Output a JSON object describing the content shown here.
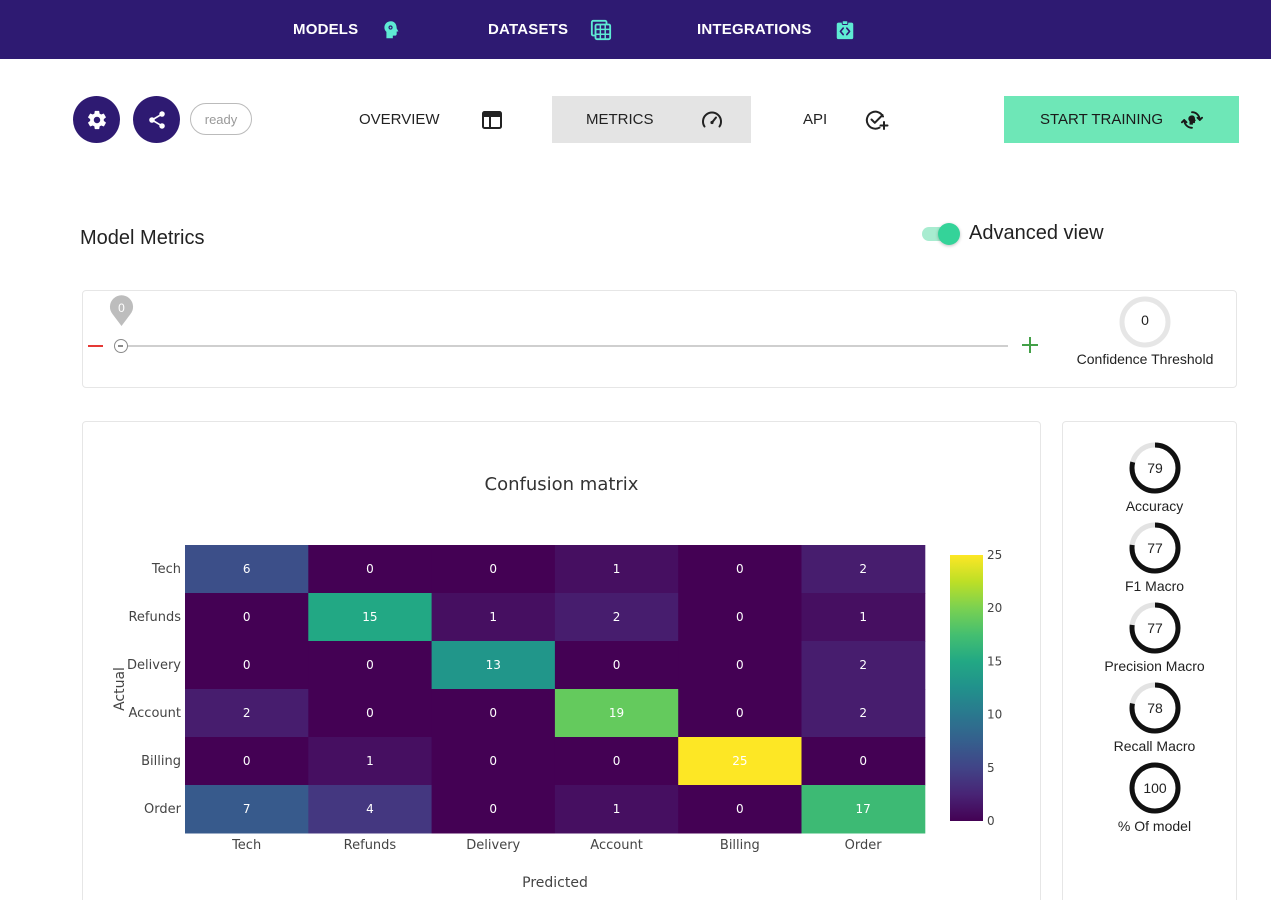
{
  "nav": {
    "models": "MODELS",
    "datasets": "DATASETS",
    "integrations": "INTEGRATIONS"
  },
  "toolbar": {
    "status": "ready",
    "tabs": {
      "overview": "OVERVIEW",
      "metrics": "METRICS",
      "api": "API"
    },
    "active_tab": "metrics",
    "start_training": "START TRAINING"
  },
  "page": {
    "title": "Model Metrics",
    "advanced_view_label": "Advanced view",
    "advanced_view_on": true
  },
  "threshold": {
    "slider_value": "0",
    "value": "0",
    "label": "Confidence Threshold"
  },
  "metrics": [
    {
      "label": "Accuracy",
      "value": "79",
      "fraction": 0.79
    },
    {
      "label": "F1 Macro",
      "value": "77",
      "fraction": 0.77
    },
    {
      "label": "Precision Macro",
      "value": "77",
      "fraction": 0.77
    },
    {
      "label": "Recall Macro",
      "value": "78",
      "fraction": 0.78
    },
    {
      "label": "% Of model",
      "value": "100",
      "fraction": 1.0
    }
  ],
  "colors": {
    "nav_bg": "#2e1a72",
    "accent": "#6ee7b7",
    "nav_icon": "#5eead4"
  },
  "chart_data": {
    "type": "heatmap",
    "title": "Confusion matrix",
    "xlabel": "Predicted",
    "ylabel": "Actual",
    "x": [
      "Tech",
      "Refunds",
      "Delivery",
      "Account",
      "Billing",
      "Order"
    ],
    "y": [
      "Tech",
      "Refunds",
      "Delivery",
      "Account",
      "Billing",
      "Order"
    ],
    "z": [
      [
        6,
        0,
        0,
        1,
        0,
        2
      ],
      [
        0,
        15,
        1,
        2,
        0,
        1
      ],
      [
        0,
        0,
        13,
        0,
        0,
        2
      ],
      [
        2,
        0,
        0,
        19,
        0,
        2
      ],
      [
        0,
        1,
        0,
        0,
        25,
        0
      ],
      [
        7,
        4,
        0,
        1,
        0,
        17
      ]
    ],
    "zrange": [
      0,
      25
    ],
    "colorscale": "viridis",
    "colorbar_ticks": [
      0,
      5,
      10,
      15,
      20,
      25
    ]
  }
}
